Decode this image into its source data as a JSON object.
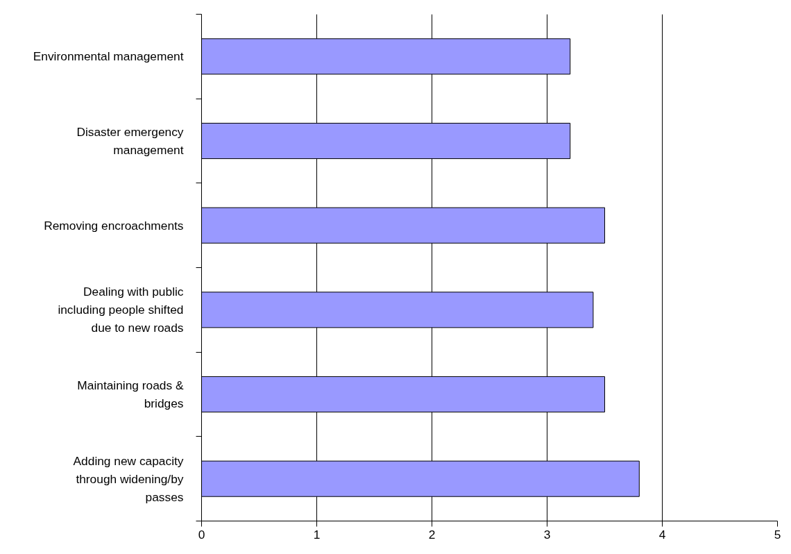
{
  "chart_data": {
    "type": "bar",
    "orientation": "horizontal",
    "categories": [
      "Environmental management",
      "Disaster emergency management",
      "Removing encroachments",
      "Dealing with public including people shifted due to new roads",
      "Maintaining roads & bridges",
      "Adding new capacity through widening/by passes"
    ],
    "values": [
      3.2,
      3.2,
      3.5,
      3.4,
      3.5,
      3.8
    ],
    "color": "#9999ff",
    "xlim": [
      0,
      5
    ],
    "xticks": [
      0,
      1,
      2,
      3,
      4,
      5
    ],
    "grid": "x"
  }
}
